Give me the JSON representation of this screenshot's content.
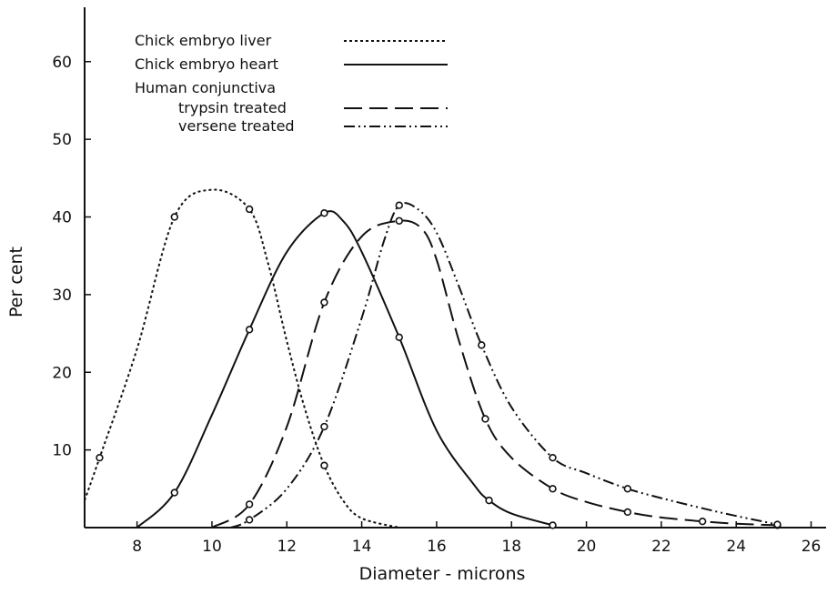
{
  "chart_data": {
    "type": "line",
    "xlabel": "Diameter - microns",
    "ylabel": "Per cent",
    "xlim": [
      6.6,
      26.4
    ],
    "ylim": [
      0,
      67
    ],
    "x_ticks": [
      8,
      10,
      12,
      14,
      16,
      18,
      20,
      22,
      24,
      26
    ],
    "y_ticks": [
      10,
      20,
      30,
      40,
      50,
      60
    ],
    "grid": false,
    "legend": {
      "placement": "top-left",
      "header": "Human conjunctiva",
      "entries": [
        {
          "label": "Chick embryo liver",
          "series": 0
        },
        {
          "label": "Chick embryo heart",
          "series": 1
        },
        {
          "label": "trypsin treated",
          "series": 2,
          "indent": true
        },
        {
          "label": "versene treated",
          "series": 3,
          "indent": true
        }
      ]
    },
    "series": [
      {
        "name": "Chick embryo liver",
        "style": "dotted",
        "points": [
          [
            7,
            9
          ],
          [
            9,
            40
          ],
          [
            11,
            41
          ],
          [
            13,
            8
          ]
        ],
        "curve": [
          [
            6.6,
            3.5
          ],
          [
            7,
            9
          ],
          [
            8,
            23
          ],
          [
            9,
            40
          ],
          [
            10,
            43.5
          ],
          [
            11,
            41
          ],
          [
            11.5,
            34
          ],
          [
            12,
            24
          ],
          [
            12.5,
            15
          ],
          [
            13,
            8
          ],
          [
            13.5,
            3.5
          ],
          [
            14,
            1.2
          ],
          [
            15,
            0
          ]
        ]
      },
      {
        "name": "Chick embryo heart",
        "style": "solid",
        "points": [
          [
            9,
            4.5
          ],
          [
            11,
            25.5
          ],
          [
            13,
            40.5
          ],
          [
            15,
            24.5
          ],
          [
            17.4,
            3.5
          ],
          [
            19.1,
            0.3
          ]
        ],
        "curve": [
          [
            8,
            0
          ],
          [
            9,
            4.5
          ],
          [
            10,
            14.5
          ],
          [
            11,
            25.5
          ],
          [
            12,
            35.5
          ],
          [
            13,
            40.5
          ],
          [
            13.5,
            39.5
          ],
          [
            14,
            35.5
          ],
          [
            15,
            24.5
          ],
          [
            16,
            12.5
          ],
          [
            17,
            5.5
          ],
          [
            17.4,
            3.5
          ],
          [
            18,
            1.8
          ],
          [
            19.1,
            0.3
          ]
        ]
      },
      {
        "name": "trypsin treated",
        "style": "dashed",
        "points": [
          [
            11,
            3
          ],
          [
            13,
            29
          ],
          [
            15,
            39.5
          ],
          [
            17.3,
            14
          ],
          [
            19.1,
            5
          ],
          [
            21.1,
            2
          ],
          [
            23.1,
            0.8
          ],
          [
            25.1,
            0.3
          ]
        ],
        "curve": [
          [
            10,
            0
          ],
          [
            11,
            3
          ],
          [
            12,
            13
          ],
          [
            13,
            29
          ],
          [
            14,
            37.5
          ],
          [
            15,
            39.5
          ],
          [
            15.6,
            38.5
          ],
          [
            16,
            34.5
          ],
          [
            16.6,
            24
          ],
          [
            17.3,
            14
          ],
          [
            18,
            9
          ],
          [
            19.1,
            5
          ],
          [
            20,
            3.3
          ],
          [
            21.1,
            2
          ],
          [
            22,
            1.3
          ],
          [
            23.1,
            0.8
          ],
          [
            24,
            0.5
          ],
          [
            25.1,
            0.3
          ]
        ]
      },
      {
        "name": "versene treated",
        "style": "dash-dot-dot",
        "points": [
          [
            11,
            1
          ],
          [
            13,
            13
          ],
          [
            15,
            41.5
          ],
          [
            17.2,
            23.5
          ],
          [
            19.1,
            9
          ],
          [
            21.1,
            5
          ],
          [
            25.1,
            0.4
          ]
        ],
        "curve": [
          [
            10.5,
            0
          ],
          [
            11,
            1
          ],
          [
            12,
            5
          ],
          [
            13,
            13
          ],
          [
            14,
            27
          ],
          [
            14.6,
            37
          ],
          [
            15,
            41.5
          ],
          [
            15.5,
            41
          ],
          [
            16,
            38
          ],
          [
            16.6,
            31
          ],
          [
            17.2,
            23.5
          ],
          [
            18,
            15.5
          ],
          [
            19.1,
            9
          ],
          [
            20,
            7
          ],
          [
            21.1,
            5
          ],
          [
            22,
            3.8
          ],
          [
            23,
            2.6
          ],
          [
            24,
            1.5
          ],
          [
            25.1,
            0.4
          ]
        ]
      }
    ]
  }
}
